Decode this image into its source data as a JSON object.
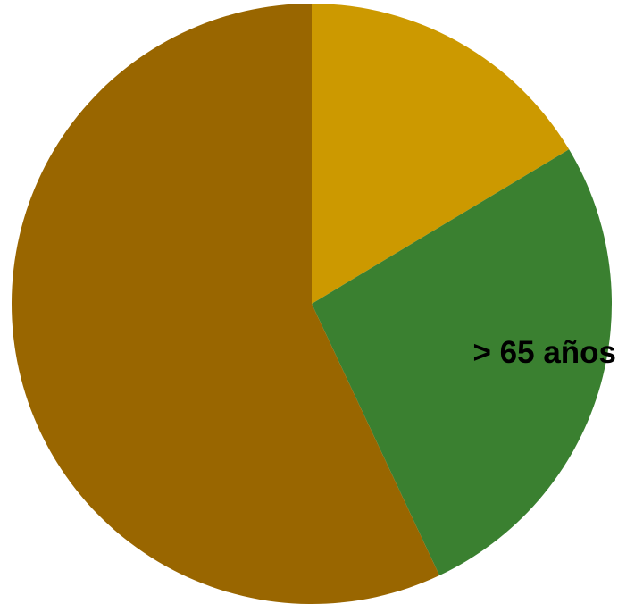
{
  "chart_data": {
    "type": "pie",
    "title": "",
    "start_angle_deg": 0,
    "direction": "clockwise",
    "slices": [
      {
        "label": "",
        "value": 16.4,
        "color": "#CC9900",
        "show_label": false
      },
      {
        "label": "> 65 años",
        "value": 26.6,
        "color": "#3A8030",
        "show_label": true
      },
      {
        "label": "",
        "value": 57.0,
        "color": "#996600",
        "show_label": false
      }
    ]
  }
}
